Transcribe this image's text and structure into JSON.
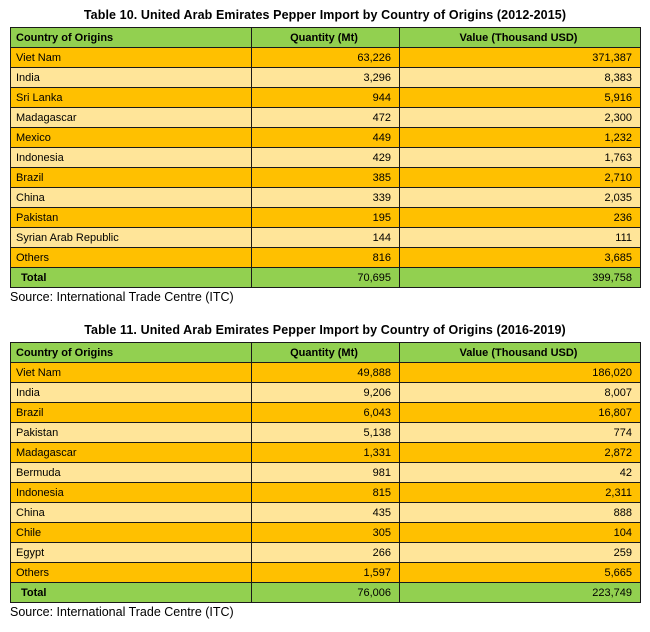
{
  "colors": {
    "header_green": "#92D050",
    "total_green": "#92D050",
    "row_orange": "#FFC000",
    "row_light_yellow": "#FFE599",
    "border": "#1A1A1A",
    "text": "#000000",
    "background": "#FFFFFF"
  },
  "tables": [
    {
      "title": "Table 10. United Arab Emirates Pepper Import by Country of Origins (2012-2015)",
      "columns": [
        "Country of Origins",
        "Quantity (Mt)",
        "Value (Thousand USD)"
      ],
      "rows": [
        {
          "country": "Viet Nam",
          "quantity": "63,226",
          "value": "371,387"
        },
        {
          "country": "India",
          "quantity": "3,296",
          "value": "8,383"
        },
        {
          "country": "Sri Lanka",
          "quantity": "944",
          "value": "5,916"
        },
        {
          "country": "Madagascar",
          "quantity": "472",
          "value": "2,300"
        },
        {
          "country": "Mexico",
          "quantity": "449",
          "value": "1,232"
        },
        {
          "country": "Indonesia",
          "quantity": "429",
          "value": "1,763"
        },
        {
          "country": "Brazil",
          "quantity": "385",
          "value": "2,710"
        },
        {
          "country": "China",
          "quantity": "339",
          "value": "2,035"
        },
        {
          "country": "Pakistan",
          "quantity": "195",
          "value": "236"
        },
        {
          "country": "Syrian Arab Republic",
          "quantity": "144",
          "value": "111"
        },
        {
          "country": "Others",
          "quantity": "816",
          "value": "3,685"
        }
      ],
      "total": {
        "label": "Total",
        "quantity": "70,695",
        "value": "399,758"
      },
      "source": "Source: International Trade Centre (ITC)"
    },
    {
      "title": "Table 11. United Arab Emirates Pepper Import by Country of Origins (2016-2019)",
      "columns": [
        "Country of Origins",
        "Quantity (Mt)",
        "Value (Thousand USD)"
      ],
      "rows": [
        {
          "country": "Viet Nam",
          "quantity": "49,888",
          "value": "186,020"
        },
        {
          "country": "India",
          "quantity": "9,206",
          "value": "8,007"
        },
        {
          "country": "Brazil",
          "quantity": "6,043",
          "value": "16,807"
        },
        {
          "country": "Pakistan",
          "quantity": "5,138",
          "value": "774"
        },
        {
          "country": "Madagascar",
          "quantity": "1,331",
          "value": "2,872"
        },
        {
          "country": "Bermuda",
          "quantity": "981",
          "value": "42"
        },
        {
          "country": "Indonesia",
          "quantity": "815",
          "value": "2,311"
        },
        {
          "country": "China",
          "quantity": "435",
          "value": "888"
        },
        {
          "country": "Chile",
          "quantity": "305",
          "value": "104"
        },
        {
          "country": "Egypt",
          "quantity": "266",
          "value": "259"
        },
        {
          "country": "Others",
          "quantity": "1,597",
          "value": "5,665"
        }
      ],
      "total": {
        "label": "Total",
        "quantity": "76,006",
        "value": "223,749"
      },
      "source": "Source: International Trade Centre (ITC)"
    }
  ]
}
